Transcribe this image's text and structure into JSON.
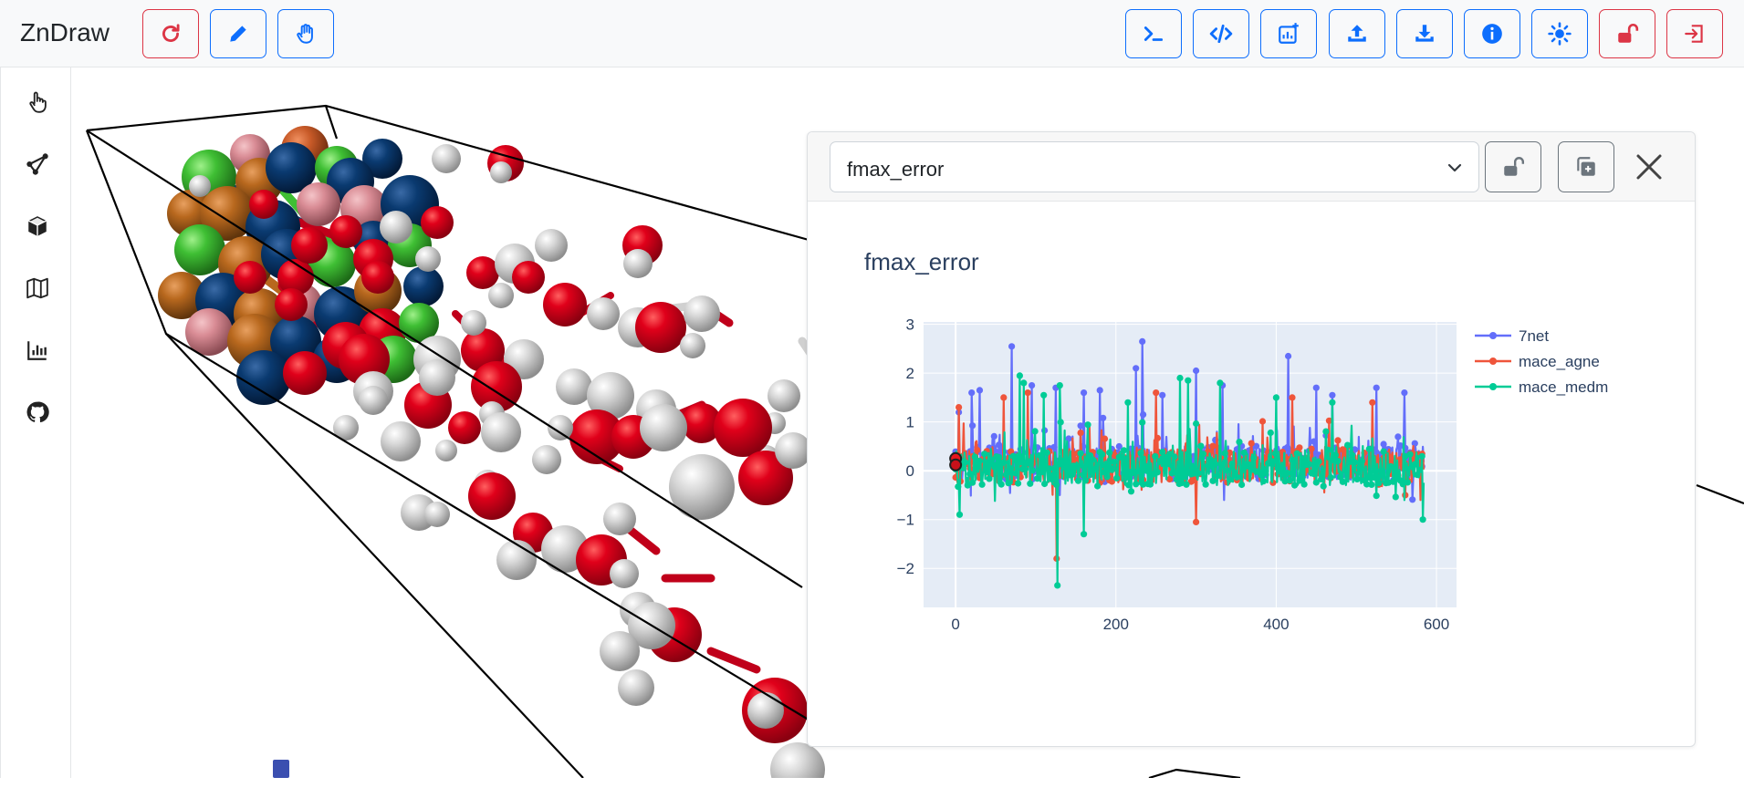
{
  "app": {
    "title": "ZnDraw"
  },
  "navbar": {
    "left_buttons": [
      {
        "name": "refresh-button",
        "icon": "refresh-icon",
        "tone": "danger"
      },
      {
        "name": "draw-button",
        "icon": "pencil-icon",
        "tone": "primary"
      },
      {
        "name": "interaction-button",
        "icon": "hand-icon",
        "tone": "primary"
      }
    ],
    "right_buttons": [
      {
        "name": "console-button",
        "icon": "terminal-icon",
        "tone": "primary"
      },
      {
        "name": "code-button",
        "icon": "code-icon",
        "tone": "primary"
      },
      {
        "name": "add-plot-button",
        "icon": "add-chart-icon",
        "tone": "primary"
      },
      {
        "name": "upload-button",
        "icon": "upload-icon",
        "tone": "primary"
      },
      {
        "name": "download-button",
        "icon": "download-icon",
        "tone": "primary"
      },
      {
        "name": "info-button",
        "icon": "info-icon",
        "tone": "primary"
      },
      {
        "name": "theme-button",
        "icon": "sun-icon",
        "tone": "primary"
      },
      {
        "name": "lock-button",
        "icon": "unlock-icon",
        "tone": "danger"
      },
      {
        "name": "logout-button",
        "icon": "logout-icon",
        "tone": "danger"
      }
    ]
  },
  "sidebar": {
    "items": [
      {
        "name": "sidebar-item-selection",
        "icon": "pointer-hand-icon"
      },
      {
        "name": "sidebar-item-modifiers",
        "icon": "graph-nodes-icon"
      },
      {
        "name": "sidebar-item-scene",
        "icon": "cube-icon"
      },
      {
        "name": "sidebar-item-geometry",
        "icon": "map-icon"
      },
      {
        "name": "sidebar-item-analysis",
        "icon": "bar-chart-icon"
      },
      {
        "name": "sidebar-item-github",
        "icon": "github-icon"
      }
    ]
  },
  "panel": {
    "select_value": "fmax_error",
    "lock_icon": "unlock-icon",
    "duplicate_icon": "copy-icon",
    "close_icon": "close-icon"
  },
  "colors": {
    "primary": "#0d6efd",
    "danger": "#dc3545",
    "secondary": "#6c757d",
    "series_7net": "#636efa",
    "series_mace_agne": "#ef553b",
    "series_mace_medm": "#00cc96",
    "plot_bg": "#e5ecf6"
  },
  "chart_data": {
    "type": "line",
    "title": "fmax_error",
    "xlabel": "",
    "ylabel": "",
    "xlim": [
      -40,
      625
    ],
    "ylim": [
      -2.8,
      3.05
    ],
    "xticks": [
      0,
      200,
      400,
      600
    ],
    "xtick_labels": [
      "0",
      "200",
      "400",
      "600"
    ],
    "yticks": [
      -2,
      -1,
      0,
      1,
      2,
      3
    ],
    "ytick_labels": [
      "−2",
      "−1",
      "0",
      "1",
      "2",
      "3"
    ],
    "grid": true,
    "legend_position": "right",
    "n_points": 585,
    "series": [
      {
        "name": "7net",
        "color": "#636efa",
        "baseline": [
          0.15,
          0.9
        ],
        "spikes": [
          [
            4,
            1.2
          ],
          [
            20,
            1.6
          ],
          [
            30,
            1.65
          ],
          [
            70,
            2.55
          ],
          [
            95,
            1.75
          ],
          [
            125,
            1.7
          ],
          [
            160,
            1.6
          ],
          [
            180,
            1.65
          ],
          [
            225,
            2.1
          ],
          [
            233,
            2.65
          ],
          [
            258,
            1.55
          ],
          [
            300,
            2.05
          ],
          [
            333,
            1.75
          ],
          [
            415,
            2.35
          ],
          [
            450,
            1.7
          ],
          [
            470,
            1.55
          ],
          [
            525,
            1.7
          ],
          [
            560,
            1.6
          ],
          [
            130,
            -0.5
          ],
          [
            335,
            -0.6
          ]
        ]
      },
      {
        "name": "mace_agne",
        "color": "#ef553b",
        "baseline": [
          0.1,
          0.8
        ],
        "spikes": [
          [
            4,
            1.3
          ],
          [
            60,
            1.5
          ],
          [
            90,
            1.6
          ],
          [
            126,
            -1.8
          ],
          [
            250,
            1.6
          ],
          [
            300,
            -1.05
          ],
          [
            420,
            1.5
          ],
          [
            520,
            1.4
          ],
          [
            580,
            -0.6
          ]
        ]
      },
      {
        "name": "mace_medm",
        "color": "#00cc96",
        "baseline": [
          0.05,
          0.75
        ],
        "spikes": [
          [
            5,
            -0.9
          ],
          [
            80,
            1.95
          ],
          [
            85,
            1.8
          ],
          [
            110,
            1.55
          ],
          [
            127,
            -2.35
          ],
          [
            130,
            1.75
          ],
          [
            160,
            -1.3
          ],
          [
            215,
            1.4
          ],
          [
            280,
            1.9
          ],
          [
            290,
            1.85
          ],
          [
            330,
            1.8
          ],
          [
            400,
            1.5
          ],
          [
            470,
            1.4
          ],
          [
            560,
            -0.6
          ],
          [
            583,
            1.4
          ],
          [
            583,
            -1.0
          ]
        ]
      }
    ],
    "markers": [
      {
        "x": 0,
        "y": 0.25,
        "color": "#e8141c"
      },
      {
        "x": 0,
        "y": 0.12,
        "color": "#c8101a"
      }
    ]
  }
}
